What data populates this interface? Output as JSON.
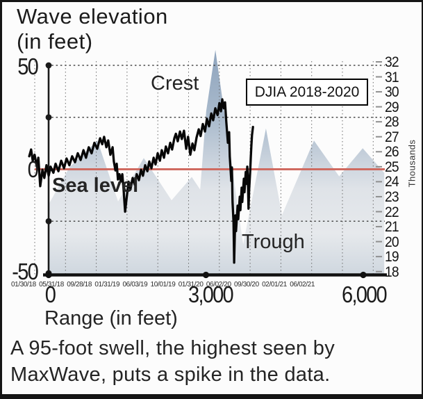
{
  "figure": {
    "title_line1": "Wave elevation",
    "title_line2": "(in feet)",
    "overlay_box_label": "DJIA 2018-2020",
    "labels": {
      "crest": "Crest",
      "sea_level": "Sea level",
      "trough": "Trough"
    },
    "x_axis_title": "Range (in feet)",
    "caption_line1": "A 95-foot swell, the highest seen by",
    "caption_line2": "MaxWave, puts a spike in the data."
  },
  "left_axis": {
    "ticks": [
      "50",
      "0",
      "-50"
    ]
  },
  "bottom_axis": {
    "ticks": [
      "0",
      "3,000",
      "6,000"
    ]
  },
  "right_axis": {
    "unit_label": "Thousands",
    "ticks": [
      "32",
      "31",
      "30",
      "29",
      "28",
      "27",
      "26",
      "25",
      "24",
      "23",
      "22",
      "21",
      "20",
      "19",
      "18"
    ]
  },
  "date_axis": {
    "labels": [
      "01/30/18",
      "05/31/18",
      "09/28/18",
      "01/31/19",
      "06/03/19",
      "10/01/19",
      "01/31/20",
      "06/02/20",
      "09/30/20",
      "02/01/21",
      "06/02/21"
    ]
  },
  "colors": {
    "sea_level_line": "#cf6a60",
    "wave_top": "#8fa4bd",
    "wave_mid": "#dfe3e8",
    "wave_bottom": "#cfd7df",
    "djia_line": "#070707",
    "axis": "#161616"
  },
  "chart_data": [
    {
      "type": "area",
      "name": "wave-profile",
      "title": "Wave elevation (in feet)",
      "xlabel": "Range (in feet)",
      "ylabel": "Wave elevation (in feet)",
      "xlim": [
        0,
        6400
      ],
      "ylim": [
        -50,
        50
      ],
      "x_ticks": [
        0,
        3000,
        6000
      ],
      "y_ticks": [
        50,
        25,
        0,
        -25,
        -50
      ],
      "gridlines": {
        "horizontal_dotted_at_feet": [
          50,
          25,
          -25
        ],
        "vertical_dotted_count": 12,
        "sea_level_line_at_feet": 0
      },
      "annotations": [
        "Crest",
        "Sea level",
        "Trough",
        "A 95-foot swell, the highest seen by MaxWave, puts a spike in the data."
      ],
      "points_range_ft_elev_ft": [
        [
          0,
          -16.9
        ],
        [
          400,
          1.0
        ],
        [
          930,
          13.8
        ],
        [
          1325,
          -15.5
        ],
        [
          1815,
          5.4
        ],
        [
          2345,
          -14.9
        ],
        [
          2730,
          -3.7
        ],
        [
          2890,
          -9.8
        ],
        [
          3005,
          28.0
        ],
        [
          3180,
          57.4
        ],
        [
          3710,
          -36.1
        ],
        [
          4145,
          19.6
        ],
        [
          4450,
          -22.0
        ],
        [
          5060,
          13.8
        ],
        [
          5540,
          -3.4
        ],
        [
          5990,
          10.1
        ],
        [
          6400,
          -1.7
        ]
      ]
    },
    {
      "type": "line",
      "name": "DJIA 2018-2020",
      "ylabel": "Thousands",
      "ylim": [
        18,
        32
      ],
      "x_range": [
        "01/30/18",
        "06/02/21"
      ],
      "legend_position": "boxed label top-center",
      "points_timefrac_value_thousands": [
        [
          -0.013,
          25.7
        ],
        [
          -0.007,
          26.15
        ],
        [
          -0.002,
          25.4
        ],
        [
          0.004,
          25.8
        ],
        [
          0.011,
          25.0
        ],
        [
          0.016,
          25.6
        ],
        [
          0.022,
          23.7
        ],
        [
          0.029,
          24.8
        ],
        [
          0.035,
          24.25
        ],
        [
          0.042,
          25.1
        ],
        [
          0.049,
          24.4
        ],
        [
          0.055,
          25.0
        ],
        [
          0.064,
          24.6
        ],
        [
          0.071,
          25.2
        ],
        [
          0.08,
          24.7
        ],
        [
          0.089,
          25.4
        ],
        [
          0.098,
          24.9
        ],
        [
          0.106,
          25.55
        ],
        [
          0.115,
          25.1
        ],
        [
          0.124,
          25.7
        ],
        [
          0.133,
          25.3
        ],
        [
          0.142,
          25.9
        ],
        [
          0.151,
          25.45
        ],
        [
          0.16,
          26.1
        ],
        [
          0.168,
          25.6
        ],
        [
          0.177,
          26.3
        ],
        [
          0.186,
          25.9
        ],
        [
          0.195,
          26.6
        ],
        [
          0.204,
          26.2
        ],
        [
          0.213,
          26.9
        ],
        [
          0.22,
          26.5
        ],
        [
          0.226,
          27.0
        ],
        [
          0.233,
          26.3
        ],
        [
          0.239,
          26.75
        ],
        [
          0.246,
          25.8
        ],
        [
          0.253,
          26.3
        ],
        [
          0.257,
          25.35
        ],
        [
          0.262,
          24.75
        ],
        [
          0.266,
          25.2
        ],
        [
          0.27,
          24.15
        ],
        [
          0.275,
          24.5
        ],
        [
          0.279,
          24.0
        ],
        [
          0.284,
          24.5
        ],
        [
          0.288,
          23.5
        ],
        [
          0.293,
          22.0
        ],
        [
          0.299,
          23.1
        ],
        [
          0.304,
          24.0
        ],
        [
          0.31,
          23.5
        ],
        [
          0.317,
          24.25
        ],
        [
          0.324,
          23.8
        ],
        [
          0.33,
          24.5
        ],
        [
          0.337,
          24.1
        ],
        [
          0.344,
          24.8
        ],
        [
          0.35,
          24.4
        ],
        [
          0.357,
          25.1
        ],
        [
          0.364,
          24.7
        ],
        [
          0.37,
          25.35
        ],
        [
          0.377,
          24.9
        ],
        [
          0.384,
          25.6
        ],
        [
          0.39,
          25.15
        ],
        [
          0.397,
          25.9
        ],
        [
          0.404,
          25.4
        ],
        [
          0.41,
          26.1
        ],
        [
          0.417,
          25.6
        ],
        [
          0.423,
          26.35
        ],
        [
          0.43,
          25.9
        ],
        [
          0.437,
          26.6
        ],
        [
          0.443,
          26.15
        ],
        [
          0.45,
          26.9
        ],
        [
          0.455,
          27.2
        ],
        [
          0.461,
          26.7
        ],
        [
          0.468,
          27.35
        ],
        [
          0.474,
          26.85
        ],
        [
          0.481,
          27.4
        ],
        [
          0.488,
          26.2
        ],
        [
          0.494,
          27.0
        ],
        [
          0.501,
          25.8
        ],
        [
          0.508,
          26.55
        ],
        [
          0.514,
          26.1
        ],
        [
          0.521,
          26.95
        ],
        [
          0.528,
          27.5
        ],
        [
          0.534,
          27.05
        ],
        [
          0.541,
          27.85
        ],
        [
          0.548,
          27.35
        ],
        [
          0.554,
          28.2
        ],
        [
          0.561,
          27.7
        ],
        [
          0.568,
          28.55
        ],
        [
          0.574,
          28.1
        ],
        [
          0.581,
          28.9
        ],
        [
          0.588,
          28.45
        ],
        [
          0.594,
          29.25
        ],
        [
          0.599,
          28.7
        ],
        [
          0.603,
          29.5
        ],
        [
          0.608,
          28.9
        ],
        [
          0.612,
          29.3
        ],
        [
          0.616,
          28.0
        ],
        [
          0.621,
          26.6
        ],
        [
          0.625,
          27.3
        ],
        [
          0.627,
          25.7
        ],
        [
          0.632,
          24.05
        ],
        [
          0.634,
          24.95
        ],
        [
          0.636,
          22.65
        ],
        [
          0.639,
          21.3
        ],
        [
          0.641,
          18.6
        ],
        [
          0.643,
          20.35
        ],
        [
          0.645,
          21.75
        ],
        [
          0.647,
          20.7
        ],
        [
          0.652,
          22.4
        ],
        [
          0.654,
          21.5
        ],
        [
          0.659,
          23.0
        ],
        [
          0.661,
          22.1
        ],
        [
          0.665,
          23.6
        ],
        [
          0.667,
          22.65
        ],
        [
          0.672,
          24.2
        ],
        [
          0.674,
          23.3
        ],
        [
          0.678,
          24.65
        ],
        [
          0.681,
          23.85
        ],
        [
          0.683,
          25.0
        ],
        [
          0.685,
          24.15
        ],
        [
          0.687,
          22.2
        ],
        [
          0.689,
          23.45
        ],
        [
          0.692,
          24.6
        ],
        [
          0.694,
          25.55
        ],
        [
          0.696,
          26.4
        ],
        [
          0.698,
          27.1
        ],
        [
          0.701,
          27.65
        ]
      ]
    }
  ]
}
